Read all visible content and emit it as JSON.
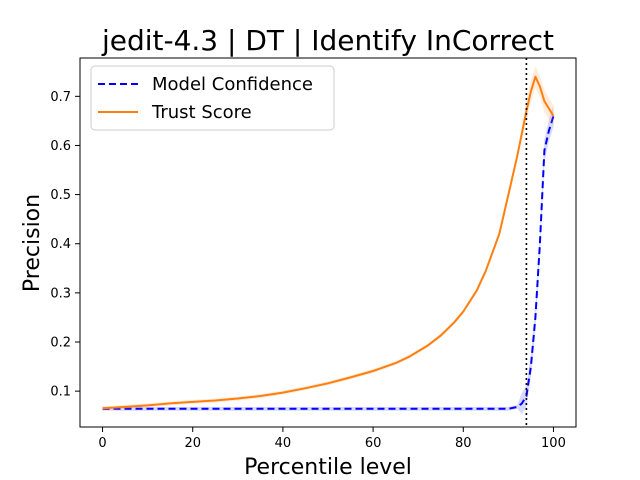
{
  "chart_data": {
    "type": "line",
    "title": "jedit-4.3 | DT | Identify InCorrect",
    "xlabel": "Percentile level",
    "ylabel": "Precision",
    "xlim": [
      -5,
      105
    ],
    "ylim": [
      0.027,
      0.778
    ],
    "xticks": [
      0,
      20,
      40,
      60,
      80,
      100
    ],
    "xtick_labels": [
      "0",
      "20",
      "40",
      "60",
      "80",
      "100"
    ],
    "yticks": [
      0.1,
      0.2,
      0.3,
      0.4,
      0.5,
      0.6,
      0.7
    ],
    "ytick_labels": [
      "0.1",
      "0.2",
      "0.3",
      "0.4",
      "0.5",
      "0.6",
      "0.7"
    ],
    "grid": false,
    "legend_position": "upper-left",
    "vline": {
      "x": 94,
      "style": "dotted",
      "color": "#000000"
    },
    "series": [
      {
        "name": "Model Confidence",
        "color": "#0000ff",
        "style": "dashed",
        "x": [
          0,
          10,
          20,
          30,
          40,
          50,
          60,
          70,
          80,
          90,
          92,
          93,
          94,
          95,
          96,
          97,
          98,
          99,
          100
        ],
        "y": [
          0.064,
          0.064,
          0.064,
          0.064,
          0.064,
          0.064,
          0.064,
          0.064,
          0.064,
          0.064,
          0.068,
          0.075,
          0.09,
          0.15,
          0.25,
          0.4,
          0.59,
          0.63,
          0.66
        ]
      },
      {
        "name": "Trust Score",
        "color": "#ff7f0e",
        "style": "solid",
        "x": [
          0,
          5,
          10,
          15,
          20,
          25,
          30,
          35,
          40,
          45,
          50,
          55,
          60,
          65,
          68,
          72,
          75,
          78,
          80,
          83,
          85,
          88,
          90,
          92,
          94,
          95,
          96,
          97,
          98,
          100
        ],
        "y": [
          0.065,
          0.068,
          0.071,
          0.075,
          0.078,
          0.081,
          0.085,
          0.09,
          0.097,
          0.106,
          0.116,
          0.128,
          0.141,
          0.157,
          0.17,
          0.192,
          0.213,
          0.24,
          0.262,
          0.305,
          0.345,
          0.42,
          0.5,
          0.58,
          0.67,
          0.71,
          0.74,
          0.72,
          0.69,
          0.66
        ]
      }
    ]
  }
}
